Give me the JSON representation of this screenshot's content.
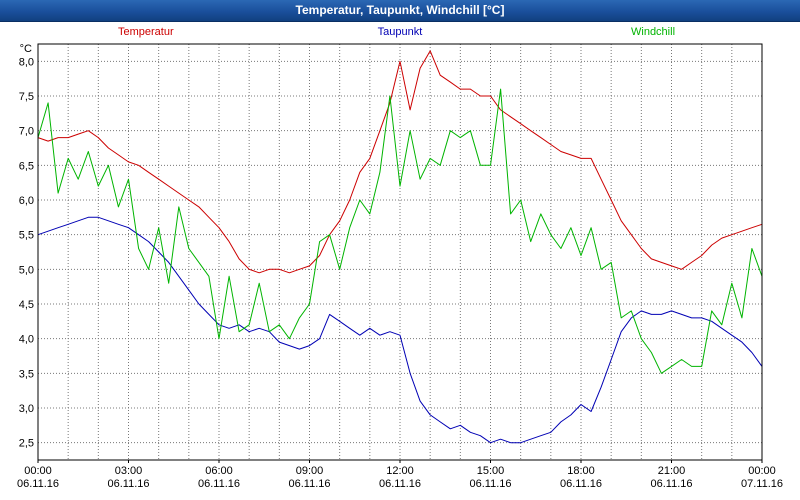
{
  "window": {
    "title": "Temperatur, Taupunkt, Windchill [°C]"
  },
  "colors": {
    "titlebar_blue": "#1a4f9c",
    "grid": "#787878",
    "axis": "#000000",
    "plot_background": "#ffffff",
    "temperatur": "#cc0000",
    "taupunkt": "#0000b4",
    "windchill": "#00b400"
  },
  "chart_data": {
    "type": "line",
    "title": "Temperatur, Taupunkt, Windchill [°C]",
    "ylabel": "°C",
    "xlabel": "",
    "ylim": [
      2.25,
      8.25
    ],
    "y_ticks": [
      2.5,
      3.0,
      3.5,
      4.0,
      4.5,
      5.0,
      5.5,
      6.0,
      6.5,
      7.0,
      7.5,
      8.0
    ],
    "grid": "dotted, vertical every 1 hour, horizontal every 0.5 °C",
    "legend_position": "top",
    "x_hours_range": [
      0,
      24
    ],
    "x_step_hours": 0.3333,
    "x_ticks": [
      {
        "hour": 0,
        "time": "00:00",
        "date": "06.11.16"
      },
      {
        "hour": 3,
        "time": "03:00",
        "date": "06.11.16"
      },
      {
        "hour": 6,
        "time": "06:00",
        "date": "06.11.16"
      },
      {
        "hour": 9,
        "time": "09:00",
        "date": "06.11.16"
      },
      {
        "hour": 12,
        "time": "12:00",
        "date": "06.11.16"
      },
      {
        "hour": 15,
        "time": "15:00",
        "date": "06.11.16"
      },
      {
        "hour": 18,
        "time": "18:00",
        "date": "06.11.16"
      },
      {
        "hour": 21,
        "time": "21:00",
        "date": "06.11.16"
      },
      {
        "hour": 24,
        "time": "00:00",
        "date": "07.11.16"
      }
    ],
    "series": [
      {
        "name": "Temperatur",
        "color": "#cc0000",
        "values": [
          6.9,
          6.85,
          6.9,
          6.9,
          6.95,
          7.0,
          6.9,
          6.75,
          6.65,
          6.55,
          6.5,
          6.4,
          6.3,
          6.2,
          6.1,
          6.0,
          5.9,
          5.75,
          5.6,
          5.4,
          5.15,
          5.0,
          4.95,
          5.0,
          5.0,
          4.95,
          5.0,
          5.05,
          5.2,
          5.5,
          5.7,
          6.0,
          6.4,
          6.6,
          7.0,
          7.4,
          8.0,
          7.3,
          7.9,
          8.15,
          7.8,
          7.7,
          7.6,
          7.6,
          7.5,
          7.5,
          7.3,
          7.2,
          7.1,
          7.0,
          6.9,
          6.8,
          6.7,
          6.65,
          6.6,
          6.6,
          6.3,
          6.0,
          5.7,
          5.5,
          5.3,
          5.15,
          5.1,
          5.05,
          5.0,
          5.1,
          5.2,
          5.35,
          5.45,
          5.5,
          5.55,
          5.6,
          5.65
        ]
      },
      {
        "name": "Taupunkt",
        "color": "#0000b4",
        "values": [
          5.5,
          5.55,
          5.6,
          5.65,
          5.7,
          5.75,
          5.75,
          5.7,
          5.65,
          5.6,
          5.5,
          5.4,
          5.25,
          5.1,
          4.9,
          4.7,
          4.5,
          4.35,
          4.2,
          4.15,
          4.2,
          4.1,
          4.15,
          4.1,
          3.95,
          3.9,
          3.85,
          3.9,
          4.0,
          4.35,
          4.25,
          4.15,
          4.05,
          4.15,
          4.05,
          4.1,
          4.05,
          3.5,
          3.1,
          2.9,
          2.8,
          2.7,
          2.75,
          2.65,
          2.6,
          2.5,
          2.55,
          2.5,
          2.5,
          2.55,
          2.6,
          2.65,
          2.8,
          2.9,
          3.05,
          2.95,
          3.3,
          3.7,
          4.1,
          4.3,
          4.4,
          4.35,
          4.35,
          4.4,
          4.35,
          4.3,
          4.3,
          4.25,
          4.15,
          4.05,
          3.95,
          3.8,
          3.6
        ]
      },
      {
        "name": "Windchill",
        "color": "#00b400",
        "values": [
          6.9,
          7.4,
          6.1,
          6.6,
          6.3,
          6.7,
          6.2,
          6.5,
          5.9,
          6.3,
          5.3,
          5.0,
          5.6,
          4.8,
          5.9,
          5.3,
          5.1,
          4.9,
          4.0,
          4.9,
          4.1,
          4.2,
          4.8,
          4.1,
          4.2,
          4.0,
          4.3,
          4.5,
          5.4,
          5.5,
          5.0,
          5.6,
          6.0,
          5.8,
          6.4,
          7.5,
          6.2,
          7.0,
          6.3,
          6.6,
          6.5,
          7.0,
          6.9,
          7.0,
          6.5,
          6.5,
          7.6,
          5.8,
          6.0,
          5.4,
          5.8,
          5.5,
          5.3,
          5.6,
          5.2,
          5.6,
          5.0,
          5.1,
          4.3,
          4.4,
          4.0,
          3.8,
          3.5,
          3.6,
          3.7,
          3.6,
          3.6,
          4.4,
          4.2,
          4.8,
          4.3,
          5.3,
          4.9
        ]
      }
    ]
  }
}
